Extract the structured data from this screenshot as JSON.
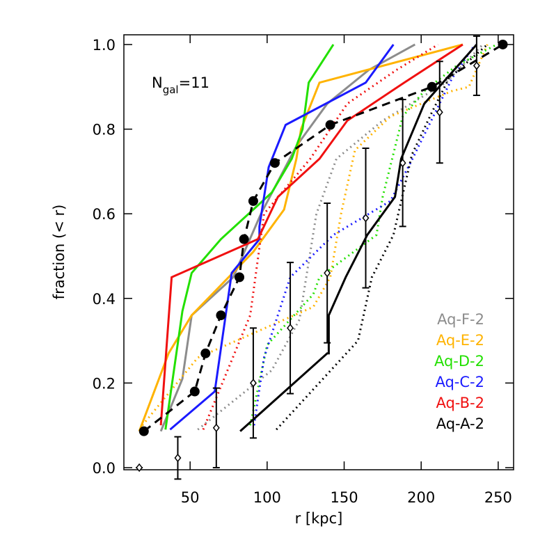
{
  "chart_data": {
    "type": "line",
    "x_label": "r [kpc]",
    "y_label": "fraction (< r)",
    "annotation": {
      "main": "N",
      "sub": "gal",
      "rest": "=11"
    },
    "xlim": [
      7,
      260
    ],
    "ylim": [
      -0.005,
      1.023
    ],
    "xticks": [
      50,
      100,
      150,
      200,
      250
    ],
    "yticks": [
      {
        "value": 0,
        "label": "0.0"
      },
      {
        "value": 0.2,
        "label": "0.2"
      },
      {
        "value": 0.4,
        "label": "0.4"
      },
      {
        "value": 0.6,
        "label": "0.6"
      },
      {
        "value": 0.8,
        "label": "0.8"
      },
      {
        "value": 1,
        "label": "1.0"
      }
    ],
    "legend": "lower right",
    "series": [
      {
        "name": "Aq-F-2",
        "color": "#8c8c8c",
        "solid": {
          "x": [
            31,
            45,
            51,
            78,
            96,
            119,
            139,
            166,
            196
          ],
          "values": [
            0.086,
            0.21,
            0.36,
            0.45,
            0.6,
            0.76,
            0.86,
            0.94,
            1.0
          ]
        },
        "dotted": {
          "x": [
            55,
            103,
            121,
            132,
            145,
            175,
            216,
            240
          ],
          "values": [
            0.09,
            0.23,
            0.35,
            0.6,
            0.73,
            0.82,
            0.91,
            1.0
          ]
        }
      },
      {
        "name": "Aq-E-2",
        "color": "#ffb300",
        "solid": {
          "x": [
            17,
            36,
            51,
            91,
            111,
            119,
            122,
            134,
            227
          ],
          "values": [
            0.086,
            0.27,
            0.36,
            0.51,
            0.61,
            0.73,
            0.8,
            0.91,
            1.0
          ]
        },
        "dotted": {
          "x": [
            19,
            55,
            130,
            141,
            148,
            157,
            180,
            220,
            231,
            243
          ],
          "values": [
            0.1,
            0.26,
            0.38,
            0.45,
            0.6,
            0.75,
            0.83,
            0.89,
            0.9,
            1.0
          ]
        }
      },
      {
        "name": "Aq-D-2",
        "color": "#22e000",
        "solid": {
          "x": [
            34,
            45,
            51,
            70,
            103,
            116,
            123,
            127,
            143
          ],
          "values": [
            0.09,
            0.37,
            0.46,
            0.54,
            0.65,
            0.73,
            0.8,
            0.91,
            1.0
          ]
        },
        "dotted": {
          "x": [
            89,
            100,
            130,
            134,
            171,
            175,
            188,
            202,
            223,
            249
          ],
          "values": [
            0.1,
            0.29,
            0.41,
            0.45,
            0.55,
            0.64,
            0.83,
            0.89,
            0.95,
            1.0
          ]
        }
      },
      {
        "name": "Aq-C-2",
        "color": "#1a1aff",
        "solid": {
          "x": [
            37,
            66,
            77,
            95,
            95,
            101,
            112,
            164,
            182
          ],
          "values": [
            0.09,
            0.18,
            0.46,
            0.54,
            0.57,
            0.71,
            0.81,
            0.91,
            1.0
          ]
        },
        "dotted": {
          "x": [
            91.5,
            98,
            115,
            143,
            180,
            193,
            220,
            235
          ],
          "values": [
            0.1,
            0.26,
            0.45,
            0.55,
            0.63,
            0.72,
            0.92,
            1.0
          ]
        }
      },
      {
        "name": "Aq-B-2",
        "color": "#f01010",
        "solid": {
          "x": [
            31,
            38,
            94,
            107,
            134,
            152,
            189,
            227
          ],
          "values": [
            0.1,
            0.45,
            0.54,
            0.64,
            0.73,
            0.82,
            0.91,
            1.0
          ]
        },
        "dotted": {
          "x": [
            58.5,
            89,
            98,
            128,
            152,
            184,
            211
          ],
          "values": [
            0.09,
            0.36,
            0.6,
            0.73,
            0.86,
            0.94,
            1.0
          ]
        }
      },
      {
        "name": "Aq-A-2",
        "color": "#000000",
        "solid": {
          "x": [
            82.5,
            139,
            140,
            140,
            151,
            165,
            183,
            187,
            202,
            236
          ],
          "values": [
            0.086,
            0.27,
            0.27,
            0.36,
            0.45,
            0.55,
            0.64,
            0.73,
            0.86,
            1.0
          ]
        },
        "dotted": {
          "x": [
            106,
            159,
            168,
            182,
            194,
            207,
            218,
            243
          ],
          "values": [
            0.09,
            0.3,
            0.45,
            0.55,
            0.74,
            0.84,
            0.92,
            1.0
          ]
        }
      }
    ],
    "mean": {
      "color": "#000000",
      "x": [
        20,
        53,
        60,
        70,
        82,
        85,
        91,
        105,
        141,
        207,
        253
      ],
      "values": [
        0.086,
        0.18,
        0.27,
        0.36,
        0.45,
        0.54,
        0.63,
        0.72,
        0.81,
        0.9,
        1.0
      ]
    },
    "points": {
      "color": "#000000",
      "x": [
        17,
        42,
        67,
        91,
        115,
        139,
        164,
        188,
        212,
        236
      ],
      "values": [
        0.0,
        0.023,
        0.094,
        0.2,
        0.33,
        0.46,
        0.59,
        0.72,
        0.84,
        0.95
      ],
      "errors": [
        0,
        0.05,
        0.094,
        0.13,
        0.155,
        0.165,
        0.165,
        0.15,
        0.12,
        0.07
      ]
    }
  }
}
